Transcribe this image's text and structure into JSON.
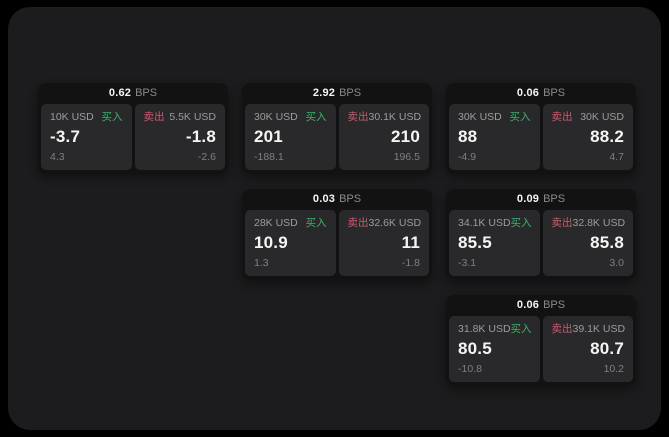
{
  "labels": {
    "bps_unit": "BPS",
    "buy": "买入",
    "sell": "卖出"
  },
  "colors": {
    "buy": "#3db168",
    "sell": "#ca5b6d",
    "panel_bg": "#1c1c1e",
    "card_bg": "#121213",
    "subcard_bg": "#29292b",
    "text_primary": "#f5f5f5",
    "text_label": "#9c9c9c",
    "text_muted": "#8a8a8a",
    "text_dim": "#7f7f7f"
  },
  "cards": [
    {
      "bps": "0.62",
      "row": 0,
      "col": 0,
      "buy": {
        "size": "10K USD",
        "price": "-3.7",
        "delta": "4.3"
      },
      "sell": {
        "size": "5.5K USD",
        "price": "-1.8",
        "delta": "-2.6"
      }
    },
    {
      "bps": "2.92",
      "row": 0,
      "col": 1,
      "buy": {
        "size": "30K USD",
        "price": "201",
        "delta": "-188.1"
      },
      "sell": {
        "size": "30.1K USD",
        "price": "210",
        "delta": "196.5"
      }
    },
    {
      "bps": "0.06",
      "row": 0,
      "col": 2,
      "buy": {
        "size": "30K USD",
        "price": "88",
        "delta": "-4.9"
      },
      "sell": {
        "size": "30K USD",
        "price": "88.2",
        "delta": "4.7"
      }
    },
    {
      "bps": "0.03",
      "row": 1,
      "col": 1,
      "buy": {
        "size": "28K USD",
        "price": "10.9",
        "delta": "1.3"
      },
      "sell": {
        "size": "32.6K USD",
        "price": "11",
        "delta": "-1.8"
      }
    },
    {
      "bps": "0.09",
      "row": 1,
      "col": 2,
      "buy": {
        "size": "34.1K USD",
        "price": "85.5",
        "delta": "-3.1"
      },
      "sell": {
        "size": "32.8K USD",
        "price": "85.8",
        "delta": "3.0"
      }
    },
    {
      "bps": "0.06",
      "row": 2,
      "col": 2,
      "buy": {
        "size": "31.8K USD",
        "price": "80.5",
        "delta": "-10.8"
      },
      "sell": {
        "size": "39.1K USD",
        "price": "80.7",
        "delta": "10.2"
      }
    }
  ]
}
